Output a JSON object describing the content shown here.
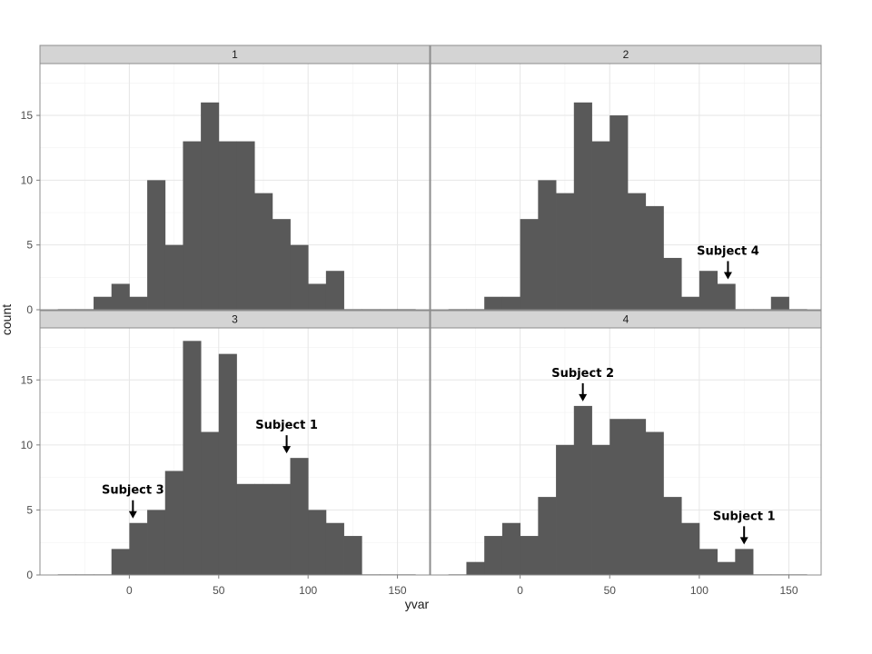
{
  "chart_data": {
    "type": "bar",
    "subtype": "histogram-facets",
    "xlabel": "yvar",
    "ylabel": "count",
    "xlim": [
      -50,
      168
    ],
    "ylim": [
      0,
      19
    ],
    "x_ticks": [
      "0",
      "50",
      "100",
      "150"
    ],
    "y_ticks": [
      "0",
      "5",
      "10",
      "15"
    ],
    "bin_width": 10,
    "colors": {
      "bar": "#595959",
      "grid_major": "#e6e6e6",
      "grid_minor": "#f2f2f2",
      "strip_fill": "#d4d4d4",
      "border": "#8c8c8c",
      "annotation": "#000000"
    },
    "facets": [
      {
        "label": "1",
        "bin_start": -40,
        "counts": [
          0,
          0,
          1,
          2,
          1,
          10,
          5,
          13,
          16,
          13,
          13,
          9,
          7,
          5,
          2,
          3,
          0,
          0,
          0,
          0
        ],
        "annotations": []
      },
      {
        "label": "2",
        "bin_start": -40,
        "counts": [
          0,
          0,
          1,
          1,
          7,
          10,
          9,
          16,
          13,
          15,
          9,
          8,
          4,
          1,
          3,
          2,
          0,
          0,
          1,
          0
        ],
        "annotations": [
          {
            "label": "Subject 4",
            "x": 116,
            "y": 2
          }
        ]
      },
      {
        "label": "3",
        "bin_start": -40,
        "counts": [
          0,
          0,
          0,
          2,
          4,
          5,
          8,
          18,
          11,
          17,
          7,
          7,
          7,
          9,
          5,
          4,
          3,
          0,
          0,
          0
        ],
        "annotations": [
          {
            "label": "Subject 1",
            "x": 88,
            "y": 9
          },
          {
            "label": "Subject 3",
            "x": 2,
            "y": 4
          }
        ]
      },
      {
        "label": "4",
        "bin_start": -40,
        "counts": [
          0,
          1,
          3,
          4,
          3,
          6,
          10,
          13,
          10,
          12,
          12,
          11,
          6,
          4,
          2,
          1,
          2,
          0,
          0,
          0
        ],
        "annotations": [
          {
            "label": "Subject 2",
            "x": 35,
            "y": 13
          },
          {
            "label": "Subject 1",
            "x": 125,
            "y": 2
          }
        ]
      }
    ]
  }
}
